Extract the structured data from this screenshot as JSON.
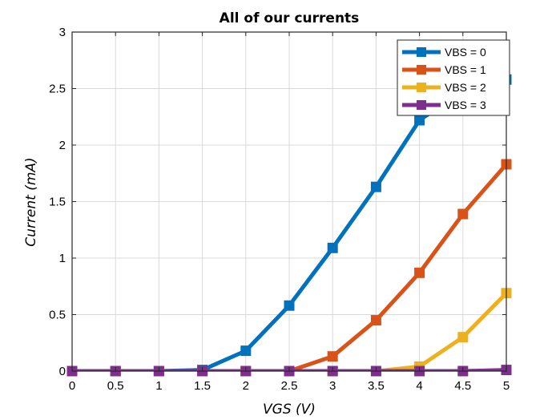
{
  "chart_data": {
    "type": "line",
    "title": "All of our currents",
    "xlabel": "VGS (V)",
    "ylabel": "Current (mA)",
    "xlim": [
      0,
      5
    ],
    "ylim": [
      0,
      3
    ],
    "xticks": [
      0,
      0.5,
      1,
      1.5,
      2,
      2.5,
      3,
      3.5,
      4,
      4.5,
      5
    ],
    "yticks": [
      0,
      0.5,
      1,
      1.5,
      2,
      2.5,
      3
    ],
    "xtick_labels": [
      "0",
      "0.5",
      "1",
      "1.5",
      "2",
      "2.5",
      "3",
      "3.5",
      "4",
      "4.5",
      "5"
    ],
    "ytick_labels": [
      "0",
      "0.5",
      "1",
      "1.5",
      "2",
      "2.5",
      "3"
    ],
    "grid": true,
    "legend_position": "top-right",
    "marker": "square",
    "x": [
      0,
      0.5,
      1,
      1.5,
      2,
      2.5,
      3,
      3.5,
      4,
      4.5,
      5
    ],
    "series": [
      {
        "name": "VBS = 0",
        "color": "#0072BD",
        "values": [
          0,
          0,
          0,
          0.01,
          0.18,
          0.58,
          1.09,
          1.63,
          2.22,
          2.48,
          2.58
        ]
      },
      {
        "name": "VBS = 1",
        "color": "#D95319",
        "values": [
          0,
          0,
          0,
          0,
          0,
          0,
          0.13,
          0.45,
          0.87,
          1.39,
          1.83
        ]
      },
      {
        "name": "VBS = 2",
        "color": "#EDB120",
        "values": [
          0,
          0,
          0,
          0,
          0,
          0,
          0,
          0,
          0.04,
          0.3,
          0.69
        ]
      },
      {
        "name": "VBS = 3",
        "color": "#7E2F8E",
        "values": [
          0,
          0,
          0,
          0,
          0,
          0,
          0,
          0,
          0,
          0,
          0.01
        ]
      }
    ]
  }
}
